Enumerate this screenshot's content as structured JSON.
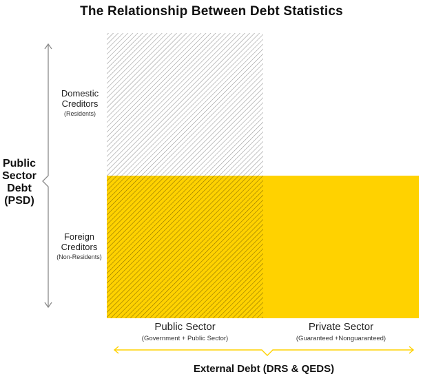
{
  "title": "The Relationship Between Debt Statistics",
  "rows": [
    {
      "main_lines": [
        "Domestic",
        "Creditors"
      ],
      "sub": "(Residents)"
    },
    {
      "main_lines": [
        "Foreign",
        "Creditors"
      ],
      "sub": "(Non-Residents)"
    }
  ],
  "left_brace_label": [
    "Public",
    "Sector",
    "Debt",
    "(PSD)"
  ],
  "columns": [
    {
      "main": "Public Sector",
      "sub": "(Government + Public Sector)"
    },
    {
      "main": "Private Sector",
      "sub": "(Guaranteed +Nonguaranteed)"
    }
  ],
  "bottom_brace_label": "External Debt (DRS & QEDS)",
  "colors": {
    "yellow": "#FFD200",
    "hatch_gray": "#9a9a9a",
    "hatch_dark": "#6e5a00",
    "brace_gray": "#8a8a8a",
    "brace_yellow": "#FFD200"
  }
}
